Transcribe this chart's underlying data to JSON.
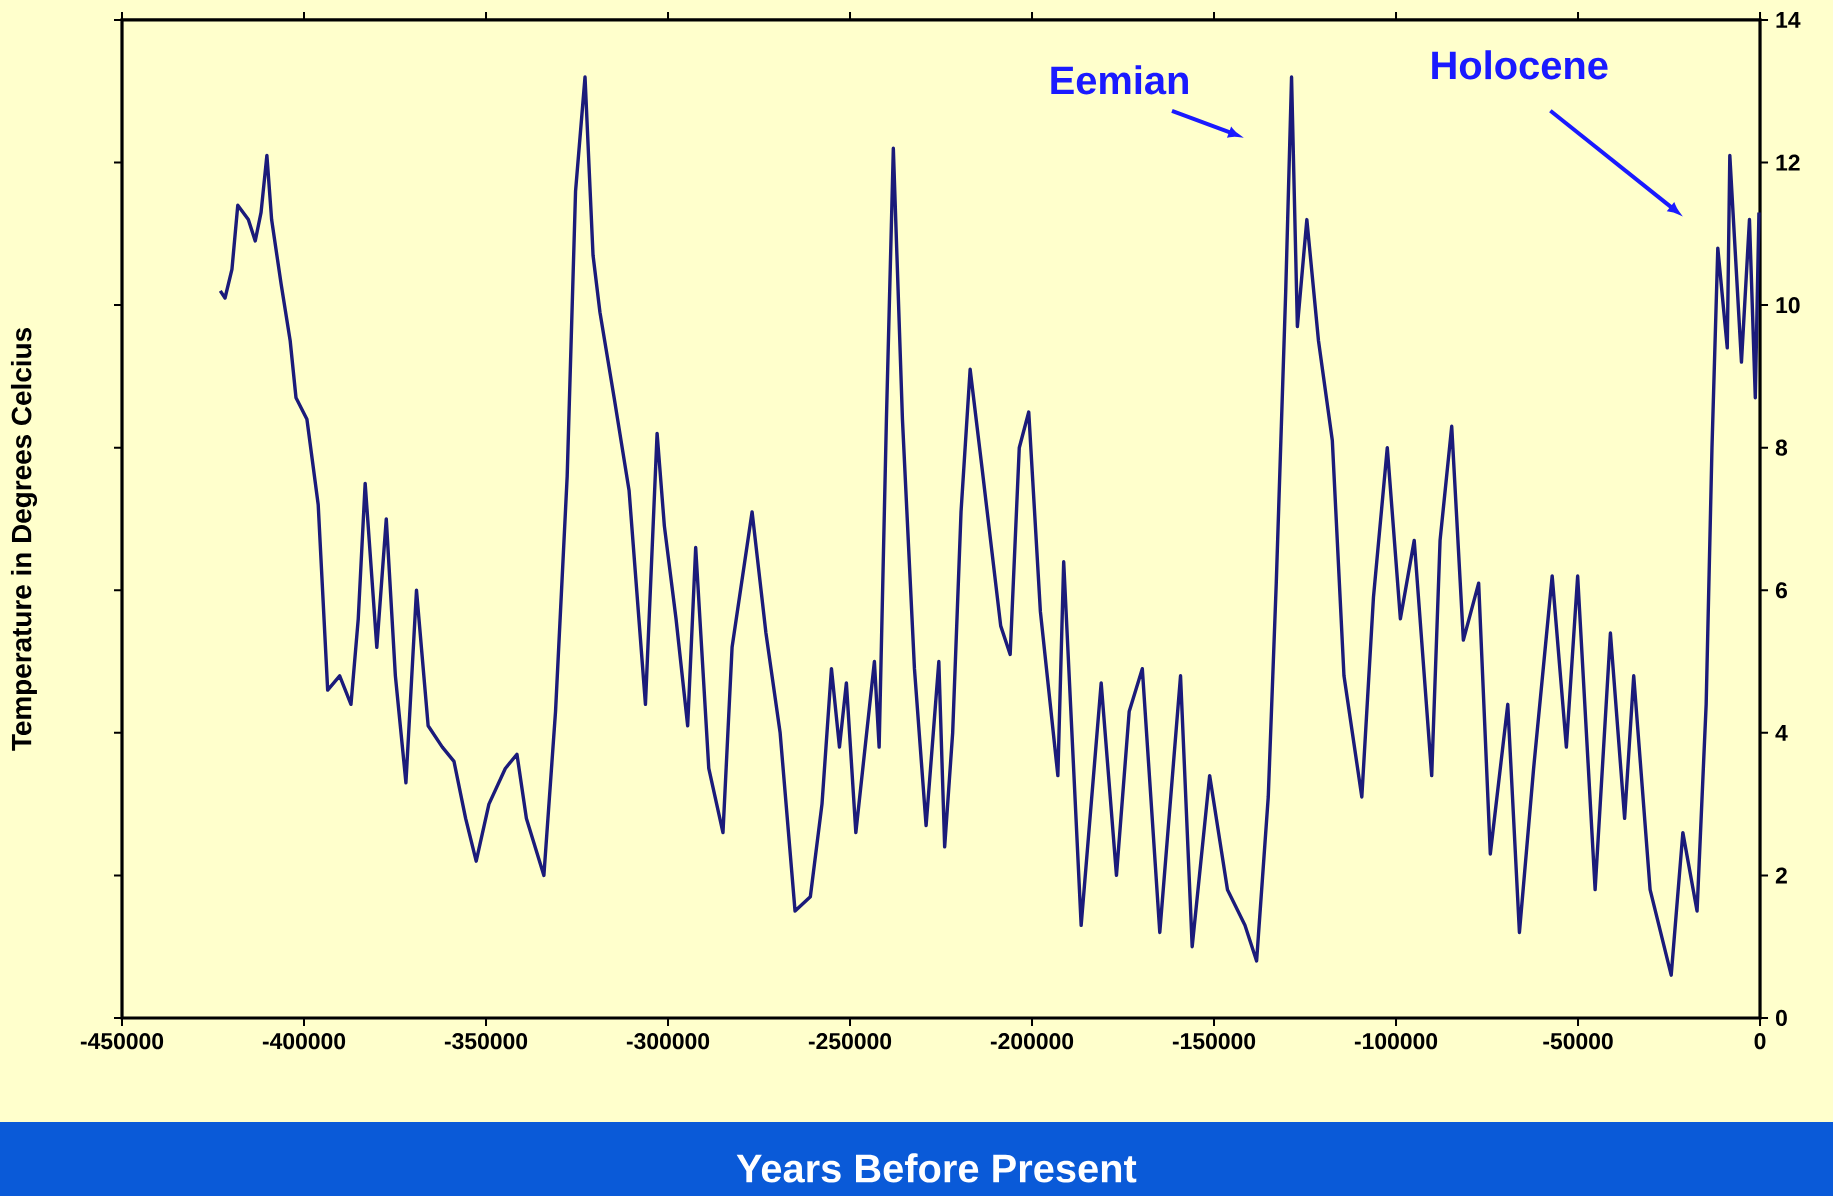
{
  "chart_data": {
    "type": "line",
    "xlabel": "Years Before Present",
    "ylabel": "Temperature in Degrees Celcius",
    "x": [
      -423000,
      -421700,
      -419800,
      -418200,
      -415300,
      -413400,
      -411800,
      -410200,
      -408900,
      -406300,
      -403800,
      -402200,
      -399200,
      -396100,
      -393500,
      -390200,
      -387100,
      -385100,
      -383200,
      -380000,
      -377400,
      -374900,
      -372000,
      -369100,
      -365900,
      -362000,
      -358800,
      -355600,
      -352700,
      -349200,
      -344700,
      -341500,
      -338900,
      -334100,
      -330900,
      -327700,
      -325400,
      -322800,
      -320600,
      -318700,
      -314800,
      -310700,
      -306200,
      -303000,
      -301000,
      -297800,
      -294600,
      -292400,
      -288800,
      -284900,
      -282400,
      -276900,
      -273100,
      -269200,
      -265100,
      -260900,
      -257700,
      -255100,
      -252900,
      -251000,
      -248400,
      -243300,
      -242000,
      -240000,
      -238100,
      -235600,
      -232300,
      -229100,
      -225600,
      -224000,
      -221800,
      -219500,
      -217000,
      -213700,
      -208600,
      -206000,
      -203500,
      -200900,
      -197700,
      -192900,
      -191300,
      -186500,
      -181000,
      -176800,
      -173300,
      -169700,
      -164900,
      -159200,
      -156000,
      -151200,
      -146300,
      -141500,
      -138300,
      -135100,
      -132900,
      -130300,
      -128700,
      -127100,
      -124500,
      -121300,
      -117500,
      -114300,
      -109400,
      -106200,
      -102400,
      -98800,
      -95000,
      -90200,
      -87900,
      -84700,
      -81500,
      -77300,
      -74100,
      -69300,
      -66100,
      -62200,
      -57100,
      -53200,
      -50100,
      -45300,
      -41100,
      -37200,
      -34700,
      -30200,
      -24400,
      -21200,
      -17300,
      -14800,
      -13200,
      -11600,
      -9000,
      -8300,
      -5100,
      -2900,
      -1300,
      -300
    ],
    "series": [
      {
        "color": "#1b1b7a",
        "values": [
          10.2,
          10.1,
          10.5,
          11.4,
          11.2,
          10.9,
          11.3,
          12.1,
          11.2,
          10.3,
          9.5,
          8.7,
          8.4,
          7.2,
          4.6,
          4.8,
          4.4,
          5.6,
          7.5,
          5.2,
          7.0,
          4.8,
          3.3,
          6.0,
          4.1,
          3.8,
          3.6,
          2.8,
          2.2,
          3.0,
          3.5,
          3.7,
          2.8,
          2.0,
          4.3,
          7.6,
          11.6,
          13.2,
          10.7,
          9.9,
          8.7,
          7.4,
          4.4,
          8.2,
          6.9,
          5.6,
          4.1,
          6.6,
          3.5,
          2.6,
          5.2,
          7.1,
          5.4,
          4.0,
          1.5,
          1.7,
          3.0,
          4.9,
          3.8,
          4.7,
          2.6,
          5.0,
          3.8,
          8.4,
          12.2,
          8.4,
          4.9,
          2.7,
          5.0,
          2.4,
          4.0,
          7.1,
          9.1,
          7.7,
          5.5,
          5.1,
          8.0,
          8.5,
          5.7,
          3.4,
          6.4,
          1.3,
          4.7,
          2.0,
          4.3,
          4.9,
          1.2,
          4.8,
          1.0,
          3.4,
          1.8,
          1.3,
          0.8,
          3.1,
          6.1,
          10.2,
          13.2,
          9.7,
          11.2,
          9.5,
          8.1,
          4.8,
          3.1,
          5.9,
          8.0,
          5.6,
          6.7,
          3.4,
          6.7,
          8.3,
          5.3,
          6.1,
          2.3,
          4.4,
          1.2,
          3.5,
          6.2,
          3.8,
          6.2,
          1.8,
          5.4,
          2.8,
          4.8,
          1.8,
          0.6,
          2.6,
          1.5,
          4.4,
          8.0,
          10.8,
          9.4,
          12.1,
          9.2,
          11.2,
          8.7,
          11.3
        ]
      }
    ],
    "xlim": [
      -450000,
      0
    ],
    "ylim": [
      0,
      14
    ],
    "xticks": [
      -450000,
      -400000,
      -350000,
      -300000,
      -250000,
      -200000,
      -150000,
      -100000,
      -50000,
      0
    ],
    "yticks": [
      0,
      2,
      4,
      6,
      8,
      10,
      12,
      14
    ],
    "annotations": [
      "Eemian",
      "Holocene"
    ]
  }
}
